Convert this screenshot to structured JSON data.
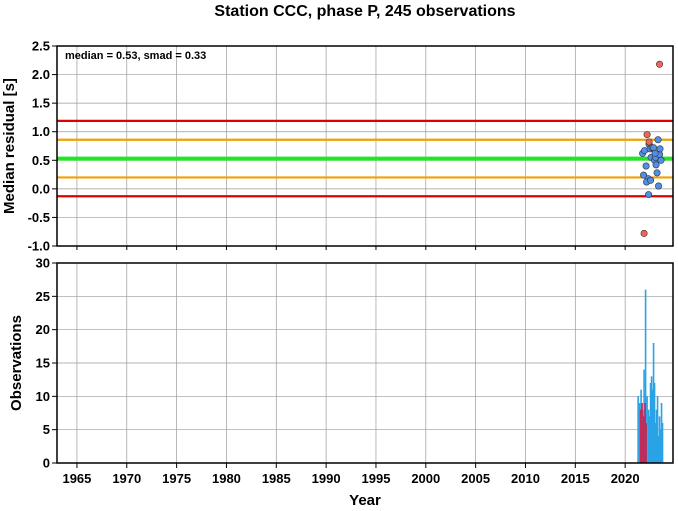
{
  "chart_data": [
    {
      "type": "scatter",
      "title": "Station CCC, phase P, 245 observations",
      "ylabel": "Median residual [s]",
      "annotation": "median = 0.53, smad = 0.33",
      "xlim": [
        1963,
        2024.8
      ],
      "ylim": [
        -1.0,
        2.5
      ],
      "yticks": [
        "-1.0",
        "-0.5",
        "0.0",
        "0.5",
        "1.0",
        "1.5",
        "2.0",
        "2.5"
      ],
      "grid": true,
      "reference_lines": [
        {
          "name": "median",
          "value": 0.53,
          "color": "#22e622"
        },
        {
          "name": "median+smad",
          "value": 0.86,
          "color": "#f0a000"
        },
        {
          "name": "median-smad",
          "value": 0.2,
          "color": "#f0a000"
        },
        {
          "name": "median+2smad",
          "value": 1.19,
          "color": "#e00000"
        },
        {
          "name": "median-2smad",
          "value": -0.13,
          "color": "#e00000"
        }
      ],
      "series": [
        {
          "color": "#4f8fe8",
          "x": [
            2021.75,
            2021.95,
            2022.1,
            2022.3,
            2022.4,
            2022.5,
            2022.6,
            2022.7,
            2022.85,
            2022.95,
            2023.05,
            2023.1,
            2023.2,
            2023.3,
            2023.35,
            2023.45,
            2023.5,
            2023.6,
            2022.15,
            2022.35,
            2021.85,
            2022.55,
            2023.0
          ],
          "y": [
            0.62,
            0.67,
            0.4,
            0.18,
            0.78,
            0.7,
            0.55,
            0.72,
            0.72,
            0.5,
            0.55,
            0.42,
            0.28,
            0.86,
            0.05,
            0.6,
            0.7,
            0.5,
            0.12,
            -0.1,
            0.24,
            0.15,
            0.62
          ]
        },
        {
          "color": "#f0645a",
          "x": [
            2021.9,
            2022.2,
            2022.4,
            2023.45
          ],
          "y": [
            -0.78,
            0.95,
            0.82,
            2.18
          ]
        }
      ]
    },
    {
      "type": "bar",
      "ylabel": "Observations",
      "xlabel": "Year",
      "xlim": [
        1963,
        2024.8
      ],
      "ylim": [
        0,
        30
      ],
      "xticks": [
        "1965",
        "1970",
        "1975",
        "1980",
        "1985",
        "1990",
        "1995",
        "2000",
        "2005",
        "2010",
        "2015",
        "2020"
      ],
      "yticks": [
        "0",
        "5",
        "10",
        "15",
        "20",
        "25",
        "30"
      ],
      "grid": true,
      "series": [
        {
          "color": "#2aa3e6",
          "x": [
            2021.3,
            2021.45,
            2021.6,
            2021.75,
            2021.9,
            2022.05,
            2022.2,
            2022.35,
            2022.45,
            2022.55,
            2022.65,
            2022.75,
            2022.85,
            2022.95,
            2023.05,
            2023.15,
            2023.25,
            2023.35,
            2023.45,
            2023.55,
            2023.65,
            2023.75
          ],
          "values": [
            10,
            9,
            11,
            8,
            14,
            26,
            10,
            8,
            7,
            12,
            13,
            11,
            18,
            12,
            6,
            8,
            10,
            4,
            7,
            5,
            9,
            6
          ]
        },
        {
          "color": "#c42a56",
          "x": [
            2021.55,
            2021.7,
            2021.85,
            2022.0,
            2022.1
          ],
          "values": [
            8,
            9,
            7,
            9,
            6
          ]
        }
      ]
    }
  ]
}
